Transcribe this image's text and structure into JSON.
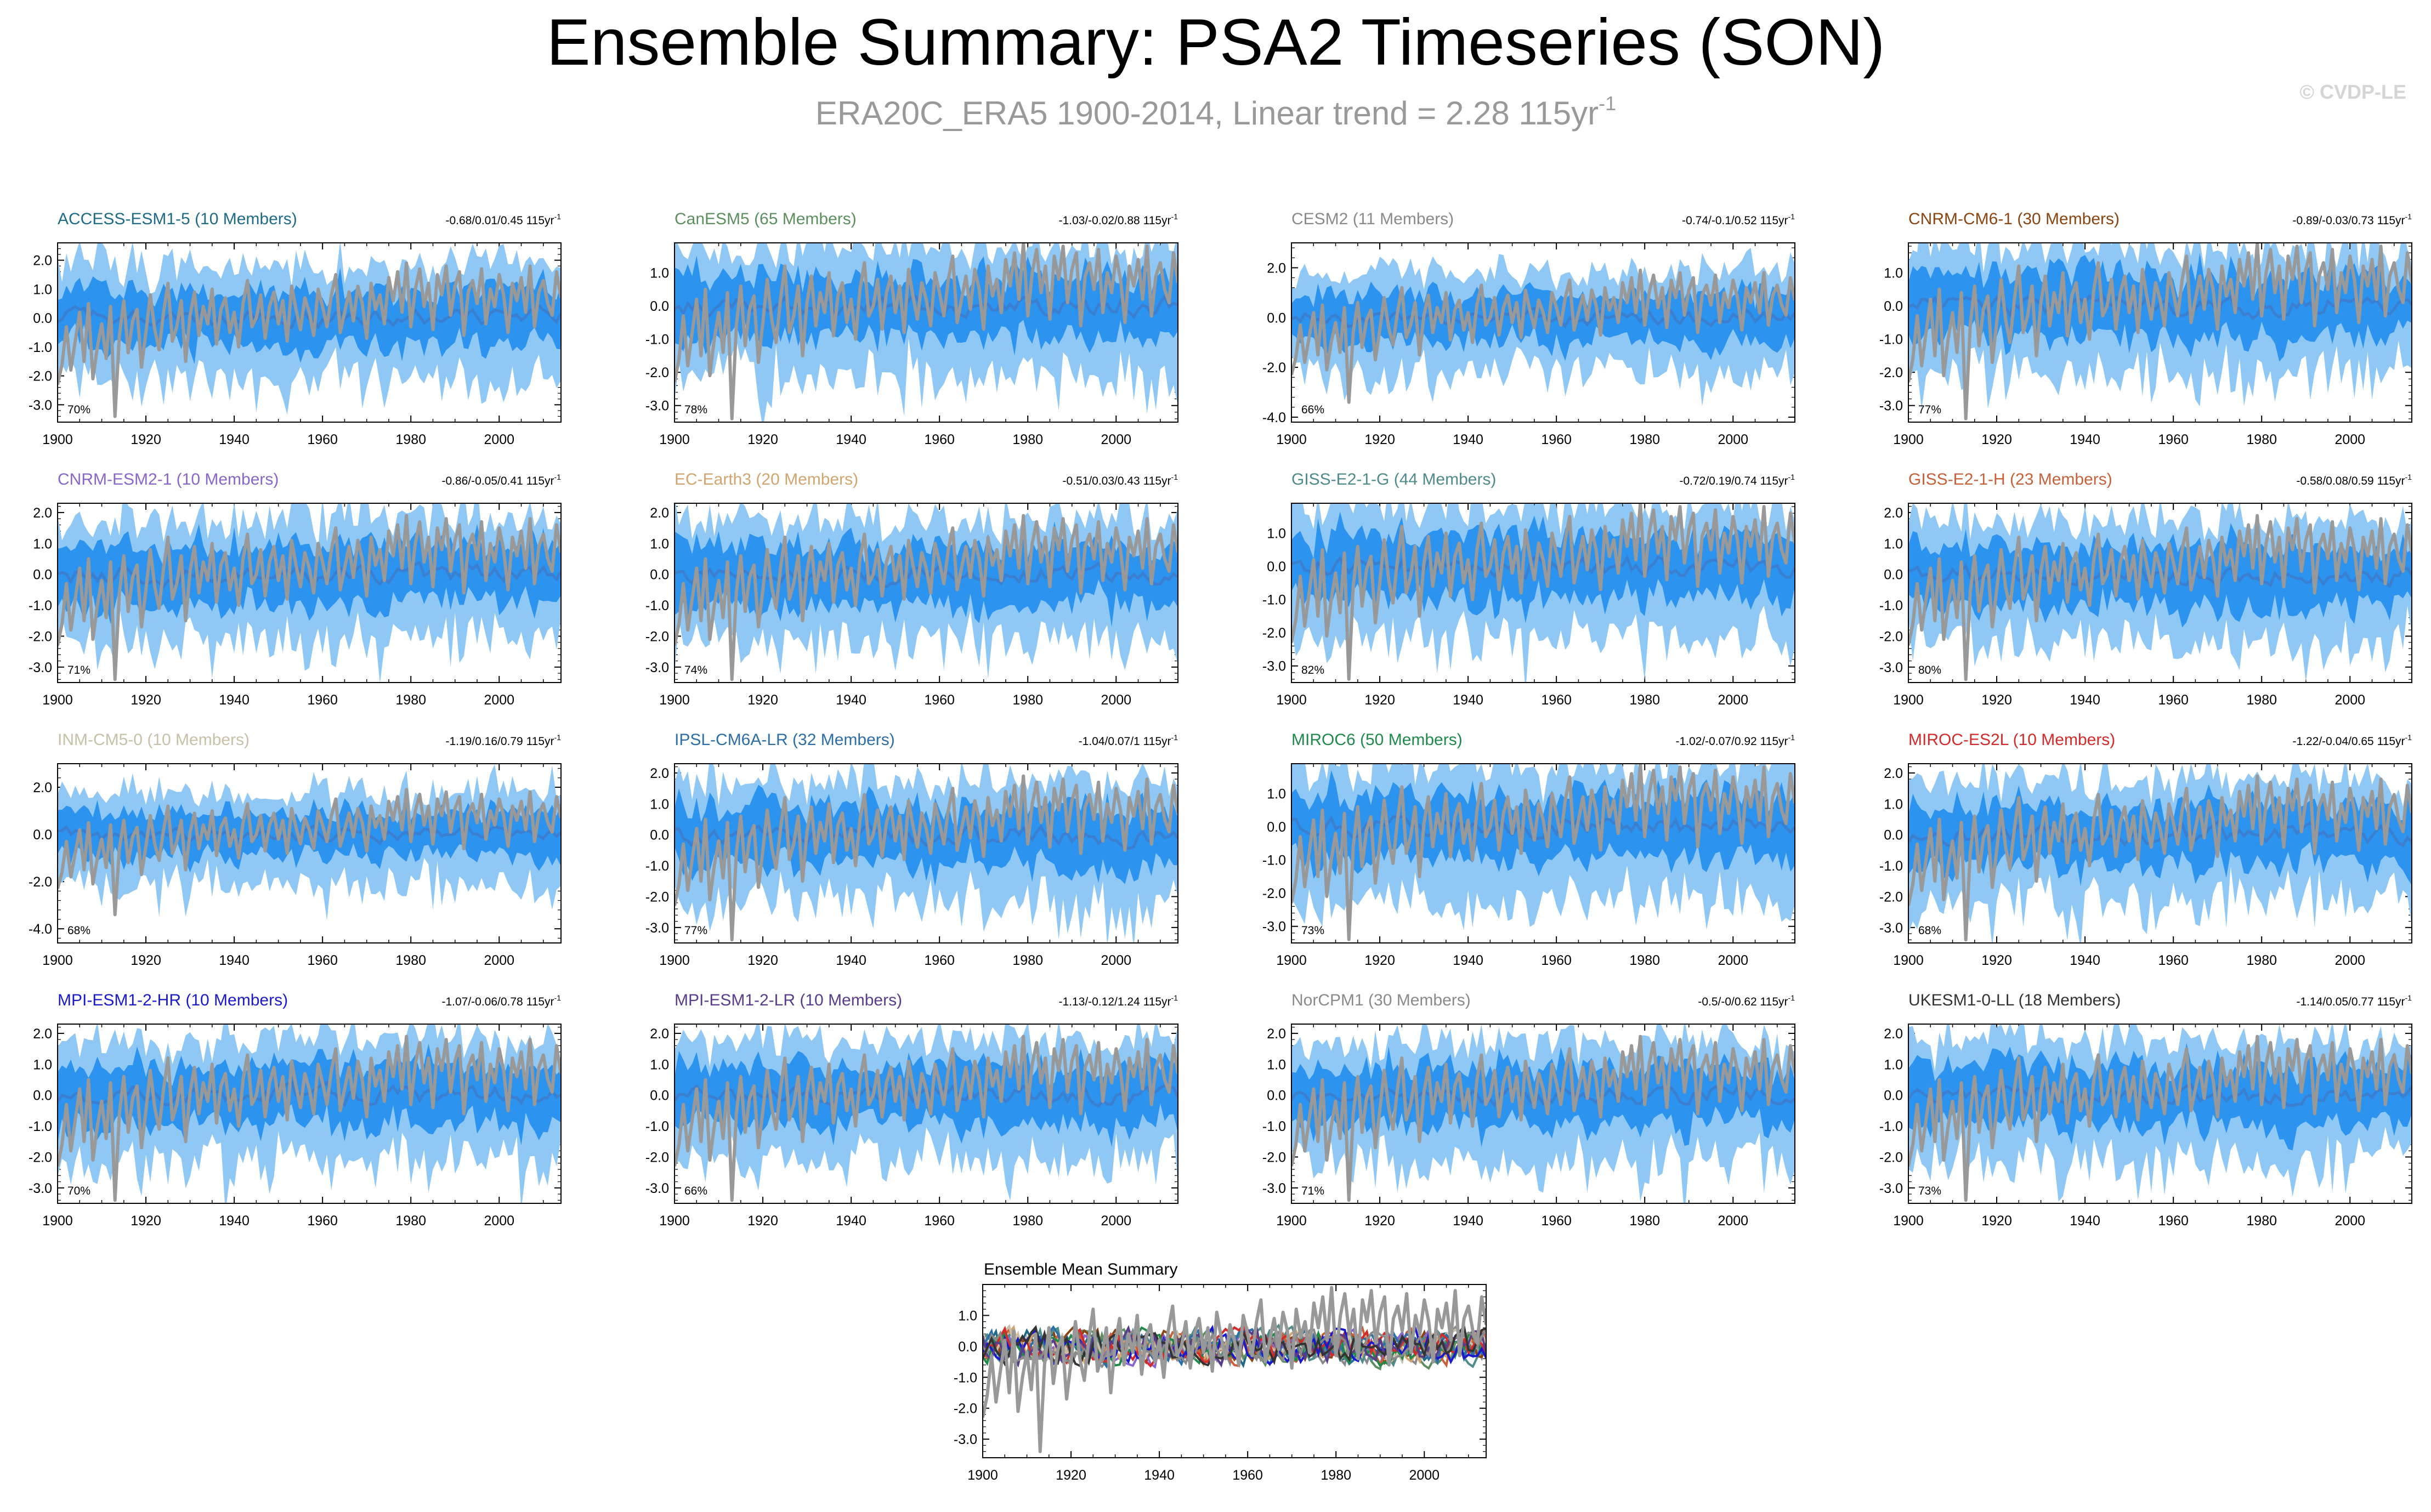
{
  "header": {
    "title": "Ensemble Summary: PSA2 Timeseries (SON)",
    "subtitle_main": "ERA20C_ERA5 1900-2014, Linear trend = 2.28 115yr",
    "subtitle_exp": "-1",
    "watermark": "© CVDP-LE"
  },
  "colors": {
    "outer_band": "#8fc8f5",
    "inner_band": "#2c93ee",
    "ensemble_mean": "#3b7fd0",
    "observations": "#999999"
  },
  "chart_data": {
    "type": "line",
    "x_range": [
      1900,
      2014
    ],
    "x_ticks": [
      "1900",
      "1920",
      "1940",
      "1960",
      "1980",
      "2000"
    ],
    "observation_series": {
      "name": "ERA20C_ERA5",
      "description": "observed PSA2 SON index, 1900-2014",
      "values": [
        -2.3,
        -1.6,
        -0.3,
        -1.8,
        -0.8,
        0.2,
        -1.5,
        0.5,
        -2.1,
        -1.0,
        -0.2,
        -1.4,
        0.4,
        -3.4,
        -0.6,
        0.6,
        -1.2,
        -0.1,
        0.3,
        -1.7,
        -0.5,
        0.8,
        -0.4,
        -1.1,
        0.2,
        1.2,
        -0.8,
        -0.3,
        0.6,
        -1.5,
        0.1,
        0.9,
        -0.6,
        0.4,
        -0.2,
        1.0,
        -0.9,
        0.3,
        0.7,
        -0.5,
        0.2,
        -1.0,
        0.5,
        1.3,
        -0.3,
        0.0,
        0.8,
        -0.7,
        0.4,
        0.9,
        -0.2,
        0.6,
        -0.8,
        1.1,
        0.3,
        -0.4,
        0.7,
        0.2,
        -0.6,
        1.0,
        0.4,
        -0.3,
        0.8,
        1.5,
        -0.5,
        0.2,
        0.9,
        -0.1,
        1.1,
        0.5,
        -0.7,
        1.2,
        0.3,
        0.8,
        -0.2,
        1.4,
        0.6,
        1.6,
        0.2,
        1.9,
        -0.3,
        1.0,
        1.7,
        0.4,
        1.2,
        -0.4,
        1.5,
        0.8,
        1.8,
        0.1,
        1.1,
        1.6,
        -0.6,
        0.9,
        1.3,
        0.5,
        1.7,
        -0.2,
        1.0,
        0.4,
        1.5,
        0.8,
        -0.5,
        1.2,
        0.6,
        1.4,
        0.2,
        1.8,
        -0.3,
        0.9,
        1.3,
        0.5,
        0.1,
        1.6,
        0.7
      ]
    },
    "panels": [
      {
        "model": "ACCESS-ESM1-5",
        "members": 10,
        "label": "ACCESS-ESM1-5 (10 Members)",
        "color": "#1f6b87",
        "trend": "-0.68/0.01/0.45 115yr",
        "trend_exp": "-1",
        "pct": "70%",
        "y_range": [
          -3.6,
          2.6
        ],
        "y_ticks": [
          {
            "v": 2,
            "label": "2.0"
          },
          {
            "v": 1,
            "label": "1.0"
          },
          {
            "v": 0,
            "label": "0.0"
          },
          {
            "v": -1,
            "label": "-1.0"
          },
          {
            "v": -2,
            "label": "-2.0"
          },
          {
            "v": -3,
            "label": "-3.0"
          }
        ]
      },
      {
        "model": "CanESM5",
        "members": 65,
        "label": "CanESM5 (65 Members)",
        "color": "#5b8f5e",
        "trend": "-1.03/-0.02/0.88 115yr",
        "trend_exp": "-1",
        "pct": "78%",
        "y_range": [
          -3.5,
          1.9
        ],
        "y_ticks": [
          {
            "v": 1,
            "label": "1.0"
          },
          {
            "v": 0,
            "label": "0.0"
          },
          {
            "v": -1,
            "label": "-1.0"
          },
          {
            "v": -2,
            "label": "-2.0"
          },
          {
            "v": -3,
            "label": "-3.0"
          }
        ]
      },
      {
        "model": "CESM2",
        "members": 11,
        "label": "CESM2 (11 Members)",
        "color": "#8a8a8a",
        "trend": "-0.74/-0.1/0.52 115yr",
        "trend_exp": "-1",
        "pct": "66%",
        "y_range": [
          -4.2,
          3.0
        ],
        "y_ticks": [
          {
            "v": 2,
            "label": "2.0"
          },
          {
            "v": 0,
            "label": "0.0"
          },
          {
            "v": -2,
            "label": "-2.0"
          },
          {
            "v": -4,
            "label": "-4.0"
          }
        ]
      },
      {
        "model": "CNRM-CM6-1",
        "members": 30,
        "label": "CNRM-CM6-1 (30 Members)",
        "color": "#8b4513",
        "trend": "-0.89/-0.03/0.73 115yr",
        "trend_exp": "-1",
        "pct": "77%",
        "y_range": [
          -3.5,
          1.9
        ],
        "y_ticks": [
          {
            "v": 1,
            "label": "1.0"
          },
          {
            "v": 0,
            "label": "0.0"
          },
          {
            "v": -1,
            "label": "-1.0"
          },
          {
            "v": -2,
            "label": "-2.0"
          },
          {
            "v": -3,
            "label": "-3.0"
          }
        ]
      },
      {
        "model": "CNRM-ESM2-1",
        "members": 10,
        "label": "CNRM-ESM2-1 (10 Members)",
        "color": "#8866cc",
        "trend": "-0.86/-0.05/0.41 115yr",
        "trend_exp": "-1",
        "pct": "71%",
        "y_range": [
          -3.5,
          2.3
        ],
        "y_ticks": [
          {
            "v": 2,
            "label": "2.0"
          },
          {
            "v": 1,
            "label": "1.0"
          },
          {
            "v": 0,
            "label": "0.0"
          },
          {
            "v": -1,
            "label": "-1.0"
          },
          {
            "v": -2,
            "label": "-2.0"
          },
          {
            "v": -3,
            "label": "-3.0"
          }
        ]
      },
      {
        "model": "EC-Earth3",
        "members": 20,
        "label": "EC-Earth3 (20 Members)",
        "color": "#d2a46f",
        "trend": "-0.51/0.03/0.43 115yr",
        "trend_exp": "-1",
        "pct": "74%",
        "y_range": [
          -3.5,
          2.3
        ],
        "y_ticks": [
          {
            "v": 2,
            "label": "2.0"
          },
          {
            "v": 1,
            "label": "1.0"
          },
          {
            "v": 0,
            "label": "0.0"
          },
          {
            "v": -1,
            "label": "-1.0"
          },
          {
            "v": -2,
            "label": "-2.0"
          },
          {
            "v": -3,
            "label": "-3.0"
          }
        ]
      },
      {
        "model": "GISS-E2-1-G",
        "members": 44,
        "label": "GISS-E2-1-G (44 Members)",
        "color": "#4e8b8b",
        "trend": "-0.72/0.19/0.74 115yr",
        "trend_exp": "-1",
        "pct": "82%",
        "y_range": [
          -3.5,
          1.9
        ],
        "y_ticks": [
          {
            "v": 1,
            "label": "1.0"
          },
          {
            "v": 0,
            "label": "0.0"
          },
          {
            "v": -1,
            "label": "-1.0"
          },
          {
            "v": -2,
            "label": "-2.0"
          },
          {
            "v": -3,
            "label": "-3.0"
          }
        ]
      },
      {
        "model": "GISS-E2-1-H",
        "members": 23,
        "label": "GISS-E2-1-H (23 Members)",
        "color": "#c8603a",
        "trend": "-0.58/0.08/0.59 115yr",
        "trend_exp": "-1",
        "pct": "80%",
        "y_range": [
          -3.5,
          2.3
        ],
        "y_ticks": [
          {
            "v": 2,
            "label": "2.0"
          },
          {
            "v": 1,
            "label": "1.0"
          },
          {
            "v": 0,
            "label": "0.0"
          },
          {
            "v": -1,
            "label": "-1.0"
          },
          {
            "v": -2,
            "label": "-2.0"
          },
          {
            "v": -3,
            "label": "-3.0"
          }
        ]
      },
      {
        "model": "INM-CM5-0",
        "members": 10,
        "label": "INM-CM5-0 (10 Members)",
        "color": "#c8c0a8",
        "trend": "-1.19/0.16/0.79 115yr",
        "trend_exp": "-1",
        "pct": "68%",
        "y_range": [
          -4.6,
          3.0
        ],
        "y_ticks": [
          {
            "v": 2,
            "label": "2.0"
          },
          {
            "v": 0,
            "label": "0.0"
          },
          {
            "v": -2,
            "label": "-2.0"
          },
          {
            "v": -4,
            "label": "-4.0"
          }
        ]
      },
      {
        "model": "IPSL-CM6A-LR",
        "members": 32,
        "label": "IPSL-CM6A-LR (32 Members)",
        "color": "#2c6fa8",
        "trend": "-1.04/0.07/1 115yr",
        "trend_exp": "-1",
        "pct": "77%",
        "y_range": [
          -3.5,
          2.3
        ],
        "y_ticks": [
          {
            "v": 2,
            "label": "2.0"
          },
          {
            "v": 1,
            "label": "1.0"
          },
          {
            "v": 0,
            "label": "0.0"
          },
          {
            "v": -1,
            "label": "-1.0"
          },
          {
            "v": -2,
            "label": "-2.0"
          },
          {
            "v": -3,
            "label": "-3.0"
          }
        ]
      },
      {
        "model": "MIROC6",
        "members": 50,
        "label": "MIROC6 (50 Members)",
        "color": "#1f8a4a",
        "trend": "-1.02/-0.07/0.92 115yr",
        "trend_exp": "-1",
        "pct": "73%",
        "y_range": [
          -3.5,
          1.9
        ],
        "y_ticks": [
          {
            "v": 1,
            "label": "1.0"
          },
          {
            "v": 0,
            "label": "0.0"
          },
          {
            "v": -1,
            "label": "-1.0"
          },
          {
            "v": -2,
            "label": "-2.0"
          },
          {
            "v": -3,
            "label": "-3.0"
          }
        ]
      },
      {
        "model": "MIROC-ES2L",
        "members": 10,
        "label": "MIROC-ES2L (10 Members)",
        "color": "#d42a2a",
        "trend": "-1.22/-0.04/0.65 115yr",
        "trend_exp": "-1",
        "pct": "68%",
        "y_range": [
          -3.5,
          2.3
        ],
        "y_ticks": [
          {
            "v": 2,
            "label": "2.0"
          },
          {
            "v": 1,
            "label": "1.0"
          },
          {
            "v": 0,
            "label": "0.0"
          },
          {
            "v": -1,
            "label": "-1.0"
          },
          {
            "v": -2,
            "label": "-2.0"
          },
          {
            "v": -3,
            "label": "-3.0"
          }
        ]
      },
      {
        "model": "MPI-ESM1-2-HR",
        "members": 10,
        "label": "MPI-ESM1-2-HR (10 Members)",
        "color": "#1a1acc",
        "trend": "-1.07/-0.06/0.78 115yr",
        "trend_exp": "-1",
        "pct": "70%",
        "y_range": [
          -3.5,
          2.3
        ],
        "y_ticks": [
          {
            "v": 2,
            "label": "2.0"
          },
          {
            "v": 1,
            "label": "1.0"
          },
          {
            "v": 0,
            "label": "0.0"
          },
          {
            "v": -1,
            "label": "-1.0"
          },
          {
            "v": -2,
            "label": "-2.0"
          },
          {
            "v": -3,
            "label": "-3.0"
          }
        ]
      },
      {
        "model": "MPI-ESM1-2-LR",
        "members": 10,
        "label": "MPI-ESM1-2-LR (10 Members)",
        "color": "#5a3d8a",
        "trend": "-1.13/-0.12/1.24 115yr",
        "trend_exp": "-1",
        "pct": "66%",
        "y_range": [
          -3.5,
          2.3
        ],
        "y_ticks": [
          {
            "v": 2,
            "label": "2.0"
          },
          {
            "v": 1,
            "label": "1.0"
          },
          {
            "v": 0,
            "label": "0.0"
          },
          {
            "v": -1,
            "label": "-1.0"
          },
          {
            "v": -2,
            "label": "-2.0"
          },
          {
            "v": -3,
            "label": "-3.0"
          }
        ]
      },
      {
        "model": "NorCPM1",
        "members": 30,
        "label": "NorCPM1 (30 Members)",
        "color": "#8a8a8a",
        "trend": "-0.5/-0/0.62 115yr",
        "trend_exp": "-1",
        "pct": "71%",
        "y_range": [
          -3.5,
          2.3
        ],
        "y_ticks": [
          {
            "v": 2,
            "label": "2.0"
          },
          {
            "v": 1,
            "label": "1.0"
          },
          {
            "v": 0,
            "label": "0.0"
          },
          {
            "v": -1,
            "label": "-1.0"
          },
          {
            "v": -2,
            "label": "-2.0"
          },
          {
            "v": -3,
            "label": "-3.0"
          }
        ]
      },
      {
        "model": "UKESM1-0-LL",
        "members": 18,
        "label": "UKESM1-0-LL (18 Members)",
        "color": "#333333",
        "trend": "-1.14/0.05/0.77 115yr",
        "trend_exp": "-1",
        "pct": "73%",
        "y_range": [
          -3.5,
          2.3
        ],
        "y_ticks": [
          {
            "v": 2,
            "label": "2.0"
          },
          {
            "v": 1,
            "label": "1.0"
          },
          {
            "v": 0,
            "label": "0.0"
          },
          {
            "v": -1,
            "label": "-1.0"
          },
          {
            "v": -2,
            "label": "-2.0"
          },
          {
            "v": -3,
            "label": "-3.0"
          }
        ]
      }
    ],
    "summary": {
      "title": "Ensemble Mean Summary",
      "y_range": [
        -3.6,
        2.0
      ],
      "y_ticks": [
        {
          "v": 1,
          "label": "1.0"
        },
        {
          "v": 0,
          "label": "0.0"
        },
        {
          "v": -1,
          "label": "-1.0"
        },
        {
          "v": -2,
          "label": "-2.0"
        },
        {
          "v": -3,
          "label": "-3.0"
        }
      ]
    }
  }
}
